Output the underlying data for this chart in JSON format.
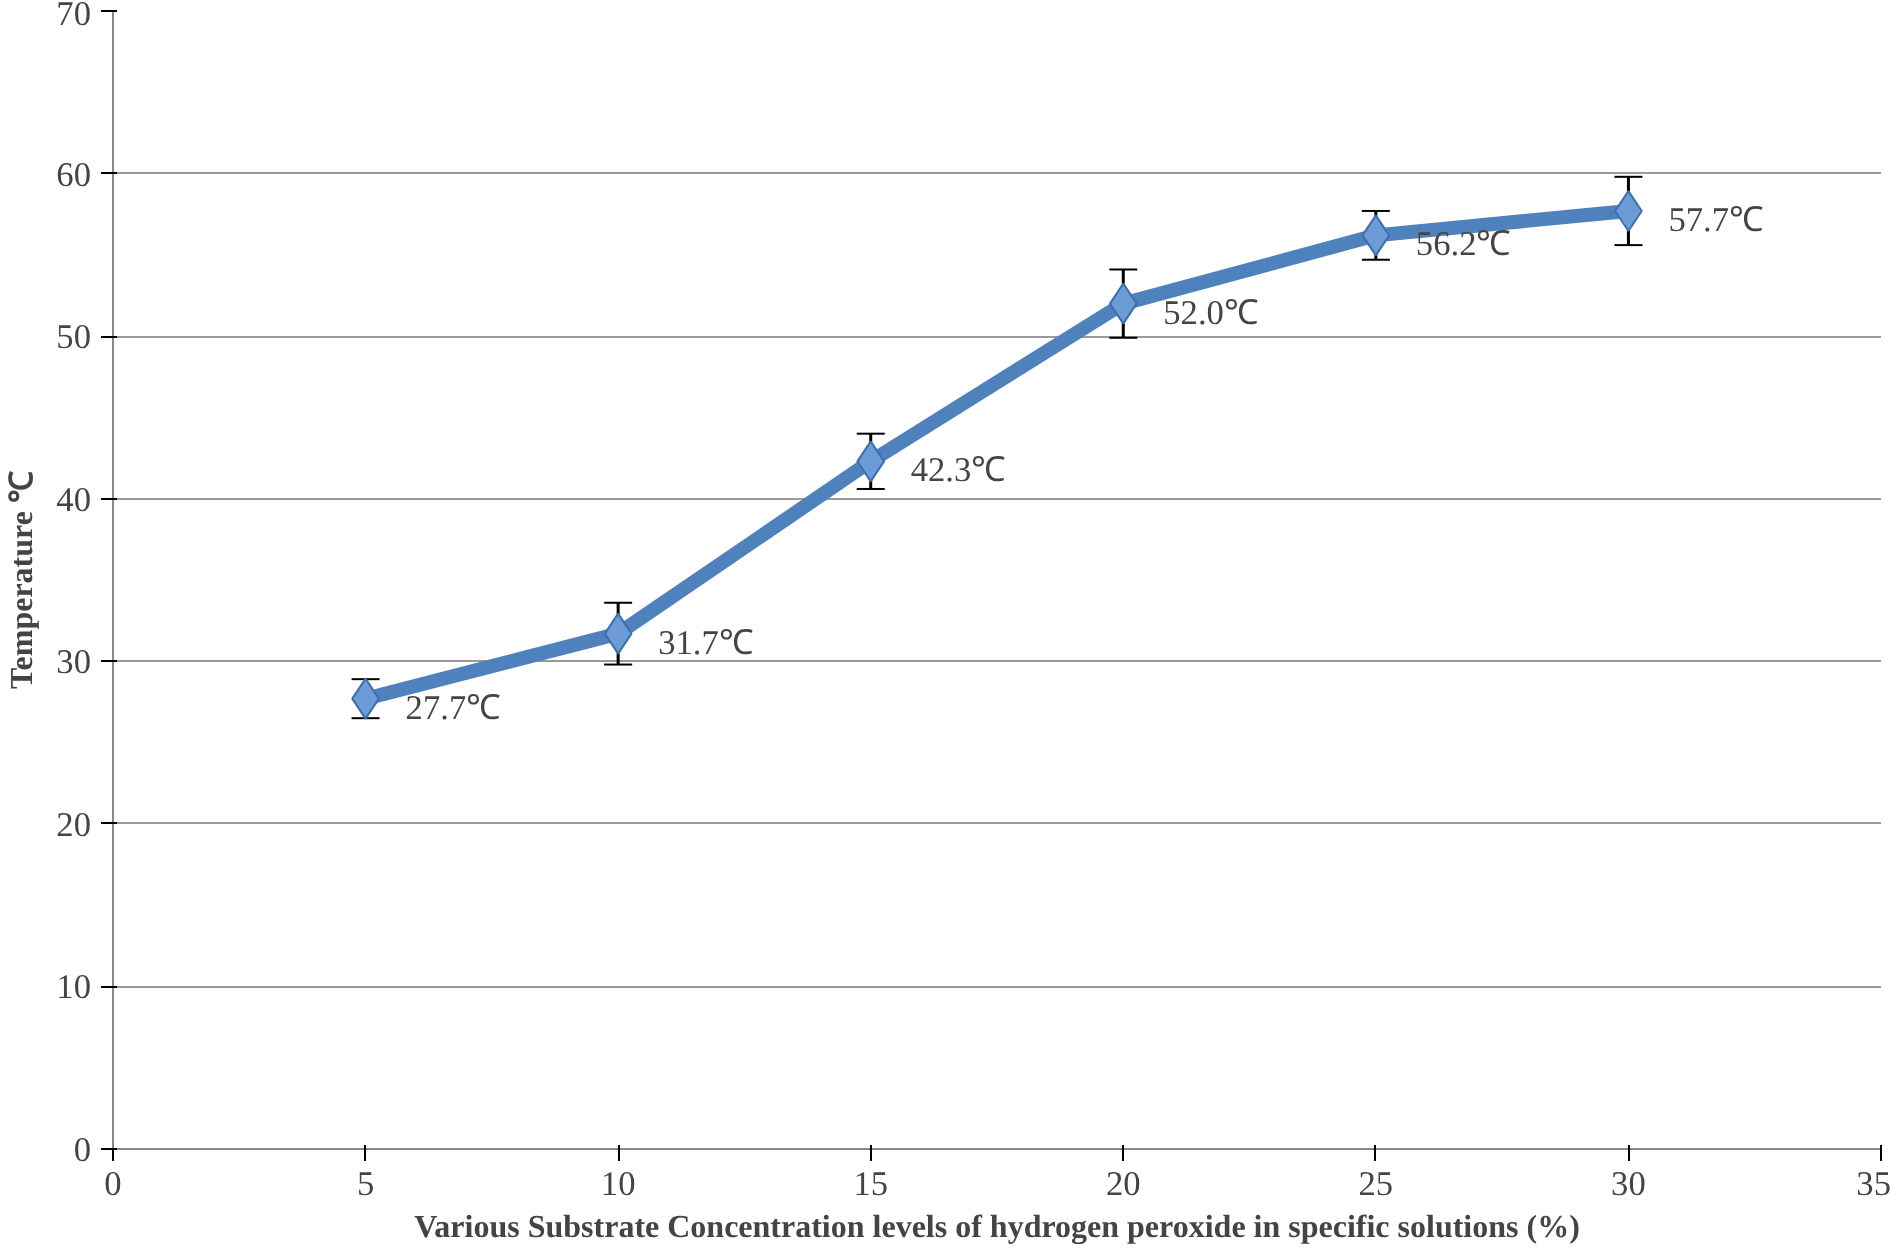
{
  "chart_data": {
    "type": "line",
    "xlabel": "Various Substrate Concentration levels of hydrogen peroxide in specific solutions (%)",
    "ylabel": "Temperature ℃",
    "x": [
      5,
      10,
      15,
      20,
      25,
      30
    ],
    "series": [
      {
        "color": "#4f81bd",
        "values": [
          27.7,
          31.7,
          42.3,
          52.0,
          56.2,
          57.7
        ],
        "errors": [
          1.2,
          1.9,
          1.7,
          2.1,
          1.5,
          2.1
        ],
        "value_labels": [
          "27.7℃",
          "31.7℃",
          "42.3℃",
          "52.0℃",
          "56.2℃",
          "57.7℃"
        ]
      }
    ],
    "xlim": [
      0,
      35
    ],
    "xticks": [
      0,
      5,
      10,
      15,
      20,
      25,
      30,
      35
    ],
    "ylim": [
      0,
      70
    ],
    "yticks": [
      0,
      10,
      20,
      30,
      40,
      50,
      60,
      70
    ],
    "grid": "y",
    "marker": "diamond",
    "line_style": "solid"
  }
}
